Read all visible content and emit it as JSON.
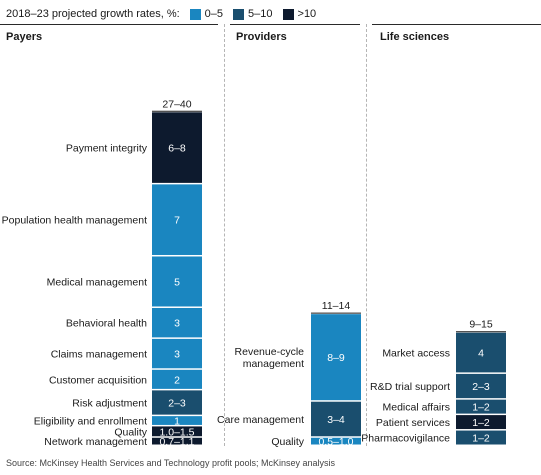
{
  "legend": {
    "title": "2018–23 projected growth rates, %:",
    "items": [
      {
        "label": "0–5",
        "color": "#1a86c0"
      },
      {
        "label": "5–10",
        "color": "#1a4e6e"
      },
      {
        "label": ">10",
        "color": "#0d1a2e"
      }
    ]
  },
  "source": "Source: McKinsey Health Services and Technology profit pools; McKinsey analysis",
  "chart_data": [
    {
      "type": "bar",
      "stacked": true,
      "title": "Payers",
      "total_label": "27–40",
      "segments": [
        {
          "name": "Payment integrity",
          "label": "6–8",
          "value": 7,
          "color": "#0d1a2e"
        },
        {
          "name": "Population health management",
          "label": "7",
          "value": 7,
          "color": "#1a86c0"
        },
        {
          "name": "Medical management",
          "label": "5",
          "value": 5,
          "color": "#1a86c0"
        },
        {
          "name": "Behavioral health",
          "label": "3",
          "value": 3,
          "color": "#1a86c0"
        },
        {
          "name": "Claims management",
          "label": "3",
          "value": 3,
          "color": "#1a86c0"
        },
        {
          "name": "Customer acquisition",
          "label": "2",
          "value": 2,
          "color": "#1a86c0"
        },
        {
          "name": "Risk adjustment",
          "label": "2–3",
          "value": 2.5,
          "color": "#1a4e6e"
        },
        {
          "name": "Eligibility and enrollment",
          "label": "1",
          "value": 1,
          "color": "#1a86c0"
        },
        {
          "name": "Quality",
          "label": "1.0–1.5",
          "value": 1.1,
          "color": "#0d1a2e"
        },
        {
          "name": "Network management",
          "label": "0.7–1.1",
          "value": 0.8,
          "color": "#0d1a2e"
        }
      ]
    },
    {
      "type": "bar",
      "stacked": true,
      "title": "Providers",
      "total_label": "11–14",
      "segments": [
        {
          "name": "Revenue-cycle management",
          "label": "8–9",
          "value": 8.5,
          "color": "#1a86c0"
        },
        {
          "name": "Care management",
          "label": "3–4",
          "value": 3.5,
          "color": "#1a4e6e"
        },
        {
          "name": "Quality",
          "label": "0.5–1.0",
          "value": 0.8,
          "color": "#1a86c0"
        }
      ]
    },
    {
      "type": "bar",
      "stacked": true,
      "title": "Life sciences",
      "total_label": "9–15",
      "segments": [
        {
          "name": "Market access",
          "label": "4",
          "value": 4,
          "color": "#1a4e6e"
        },
        {
          "name": "R&D trial support",
          "label": "2–3",
          "value": 2.5,
          "color": "#1a4e6e"
        },
        {
          "name": "Medical affairs",
          "label": "1–2",
          "value": 1.5,
          "color": "#1a4e6e"
        },
        {
          "name": "Patient services",
          "label": "1–2",
          "value": 1.5,
          "color": "#0d1a2e"
        },
        {
          "name": "Pharmacovigilance",
          "label": "1–2",
          "value": 1.5,
          "color": "#1a4e6e"
        }
      ]
    }
  ]
}
